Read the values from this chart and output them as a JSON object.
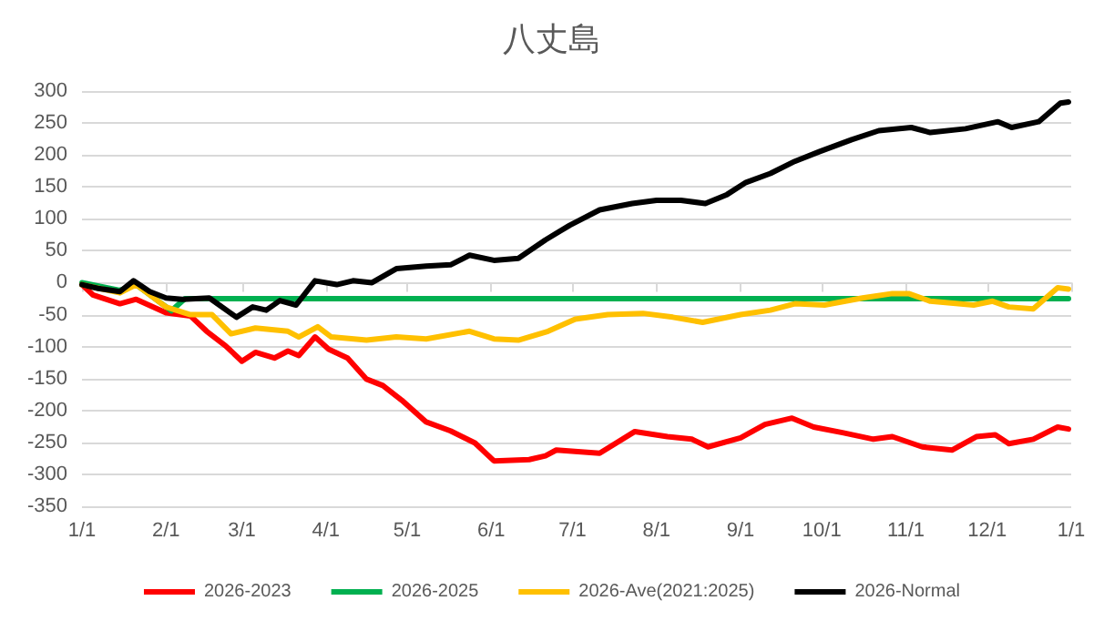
{
  "chart_data": {
    "type": "line",
    "title": "八丈島",
    "xlim": [
      "2026-01-01",
      "2027-01-01"
    ],
    "xticks": [
      {
        "value": "2026-01-01",
        "label": "1/1"
      },
      {
        "value": "2026-02-01",
        "label": "2/1"
      },
      {
        "value": "2026-03-01",
        "label": "3/1"
      },
      {
        "value": "2026-04-01",
        "label": "4/1"
      },
      {
        "value": "2026-05-01",
        "label": "5/1"
      },
      {
        "value": "2026-06-01",
        "label": "6/1"
      },
      {
        "value": "2026-07-01",
        "label": "7/1"
      },
      {
        "value": "2026-08-01",
        "label": "8/1"
      },
      {
        "value": "2026-09-01",
        "label": "9/1"
      },
      {
        "value": "2026-10-01",
        "label": "10/1"
      },
      {
        "value": "2026-11-01",
        "label": "11/1"
      },
      {
        "value": "2026-12-01",
        "label": "12/1"
      },
      {
        "value": "2027-01-01",
        "label": "1/1"
      }
    ],
    "ylim": [
      -350,
      300
    ],
    "yticks": [
      -350,
      -300,
      -250,
      -200,
      -150,
      -100,
      -50,
      0,
      50,
      100,
      150,
      200,
      250,
      300
    ],
    "grid": "y",
    "legend": "bottom",
    "line_style": "solid",
    "series": [
      {
        "name": "2026-2023",
        "color": "#ff0000",
        "x": [
          "2026-01-01",
          "2026-01-05",
          "2026-01-15",
          "2026-01-21",
          "2026-02-01",
          "2026-02-10",
          "2026-02-16",
          "2026-02-23",
          "2026-03-01",
          "2026-03-06",
          "2026-03-13",
          "2026-03-18",
          "2026-03-22",
          "2026-03-28",
          "2026-04-02",
          "2026-04-09",
          "2026-04-16",
          "2026-04-22",
          "2026-04-29",
          "2026-05-08",
          "2026-05-17",
          "2026-05-26",
          "2026-06-02",
          "2026-06-15",
          "2026-06-21",
          "2026-06-25",
          "2026-07-11",
          "2026-07-24",
          "2026-08-05",
          "2026-08-14",
          "2026-08-20",
          "2026-09-01",
          "2026-09-10",
          "2026-09-20",
          "2026-09-28",
          "2026-10-09",
          "2026-10-20",
          "2026-10-27",
          "2026-11-07",
          "2026-11-18",
          "2026-11-27",
          "2026-12-04",
          "2026-12-09",
          "2026-12-18",
          "2026-12-27",
          "2026-12-31"
        ],
        "values": [
          -3,
          -19,
          -33,
          -26,
          -47,
          -52,
          -76,
          -99,
          -123,
          -109,
          -118,
          -107,
          -114,
          -85,
          -104,
          -118,
          -151,
          -161,
          -184,
          -218,
          -232,
          -251,
          -279,
          -277,
          -271,
          -262,
          -267,
          -233,
          -241,
          -245,
          -257,
          -243,
          -222,
          -212,
          -226,
          -235,
          -245,
          -241,
          -257,
          -262,
          -241,
          -238,
          -252,
          -245,
          -226,
          -229
        ]
      },
      {
        "name": "2026-2025",
        "color": "#00b050",
        "x": [
          "2026-01-01",
          "2026-01-15",
          "2026-01-21",
          "2026-02-03",
          "2026-02-08",
          "2026-12-31"
        ],
        "values": [
          0,
          -12,
          -3,
          -44,
          -25,
          -25
        ]
      },
      {
        "name": "2026-Ave(2021:2025)",
        "color": "#ffc000",
        "x": [
          "2026-01-01",
          "2026-01-15",
          "2026-01-21",
          "2026-02-01",
          "2026-02-10",
          "2026-02-18",
          "2026-02-25",
          "2026-03-06",
          "2026-03-18",
          "2026-03-22",
          "2026-03-29",
          "2026-04-03",
          "2026-04-16",
          "2026-04-27",
          "2026-05-08",
          "2026-05-24",
          "2026-06-02",
          "2026-06-11",
          "2026-06-22",
          "2026-07-02",
          "2026-07-14",
          "2026-07-27",
          "2026-08-07",
          "2026-08-18",
          "2026-09-01",
          "2026-09-12",
          "2026-09-21",
          "2026-10-02",
          "2026-10-16",
          "2026-10-27",
          "2026-11-02",
          "2026-11-10",
          "2026-11-26",
          "2026-12-03",
          "2026-12-09",
          "2026-12-18",
          "2026-12-24",
          "2026-12-27",
          "2026-12-31"
        ],
        "values": [
          -3,
          -16,
          -3,
          -38,
          -50,
          -50,
          -80,
          -71,
          -76,
          -85,
          -69,
          -85,
          -90,
          -85,
          -88,
          -76,
          -88,
          -90,
          -76,
          -57,
          -50,
          -48,
          -54,
          -62,
          -50,
          -43,
          -33,
          -35,
          -24,
          -17,
          -17,
          -29,
          -35,
          -29,
          -38,
          -41,
          -19,
          -8,
          -10
        ]
      },
      {
        "name": "2026-Normal",
        "color": "#000000",
        "x": [
          "2026-01-01",
          "2026-01-07",
          "2026-01-15",
          "2026-01-20",
          "2026-01-26",
          "2026-02-01",
          "2026-02-07",
          "2026-02-17",
          "2026-02-27",
          "2026-03-05",
          "2026-03-10",
          "2026-03-15",
          "2026-03-21",
          "2026-03-28",
          "2026-04-05",
          "2026-04-11",
          "2026-04-18",
          "2026-04-27",
          "2026-05-08",
          "2026-05-17",
          "2026-05-24",
          "2026-06-02",
          "2026-06-11",
          "2026-06-21",
          "2026-06-30",
          "2026-07-11",
          "2026-07-23",
          "2026-08-01",
          "2026-08-10",
          "2026-08-19",
          "2026-08-27",
          "2026-09-03",
          "2026-09-12",
          "2026-09-21",
          "2026-09-30",
          "2026-10-12",
          "2026-10-22",
          "2026-11-03",
          "2026-11-10",
          "2026-11-23",
          "2026-12-05",
          "2026-12-10",
          "2026-12-20",
          "2026-12-28",
          "2026-12-31"
        ],
        "values": [
          -3,
          -9,
          -14,
          3,
          -14,
          -24,
          -26,
          -24,
          -54,
          -38,
          -43,
          -28,
          -35,
          3,
          -3,
          3,
          0,
          22,
          26,
          28,
          43,
          35,
          38,
          67,
          90,
          114,
          124,
          129,
          129,
          124,
          138,
          157,
          171,
          190,
          205,
          224,
          238,
          243,
          235,
          241,
          252,
          243,
          252,
          281,
          283
        ]
      }
    ]
  }
}
